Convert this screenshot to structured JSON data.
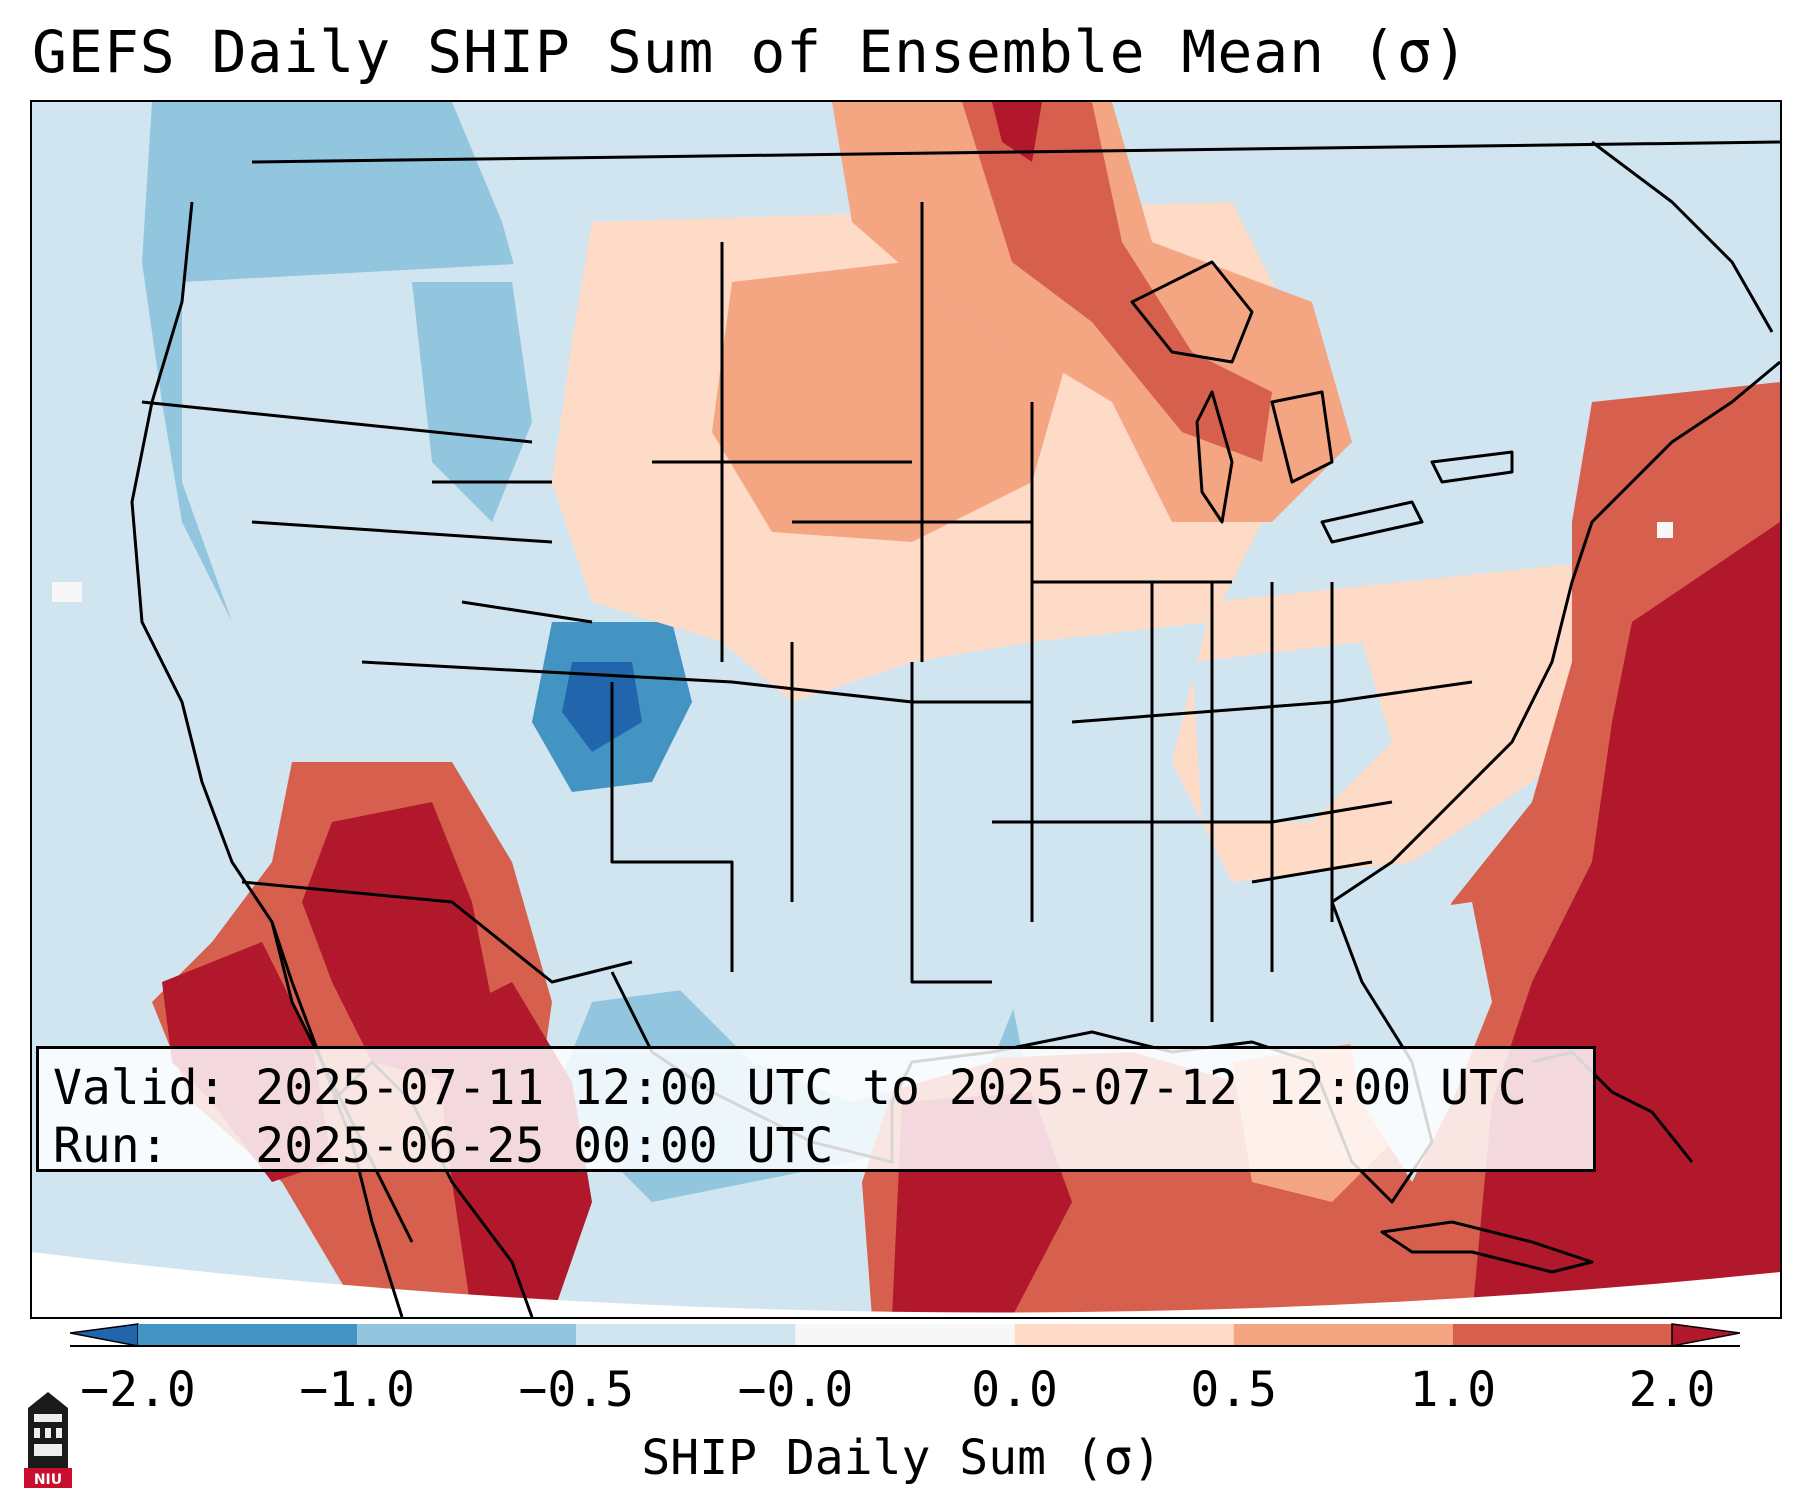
{
  "title": "GEFS Daily SHIP Sum of Ensemble Mean (σ)",
  "info": {
    "valid_line": "Valid: 2025-07-11 12:00 UTC to 2025-07-12 12:00 UTC",
    "run_line": "Run:   2025-06-25 00:00 UTC"
  },
  "colorbar": {
    "label": "SHIP Daily Sum (σ)",
    "extend": "both",
    "bins": [
      "#2166ac",
      "#4393c3",
      "#92c5de",
      "#d1e5f0",
      "#f7f7f7",
      "#fddbc7",
      "#f4a582",
      "#d6604d",
      "#b2182b"
    ],
    "ticks": [
      "−2.0",
      "−1.0",
      "−0.5",
      "−0.0",
      "0.0",
      "0.5",
      "1.0",
      "2.0"
    ]
  },
  "colors": {
    "below_low": "#2166ac",
    "below_mid": "#4393c3",
    "below": "#92c5de",
    "slightly_below": "#d1e5f0",
    "neutral": "#f7f7f7",
    "slightly_above": "#fddbc7",
    "above": "#f4a582",
    "above_mid": "#d6604d",
    "above_high": "#b2182b"
  },
  "logo": {
    "icon": "niu-logo-icon",
    "text": "NIU"
  }
}
